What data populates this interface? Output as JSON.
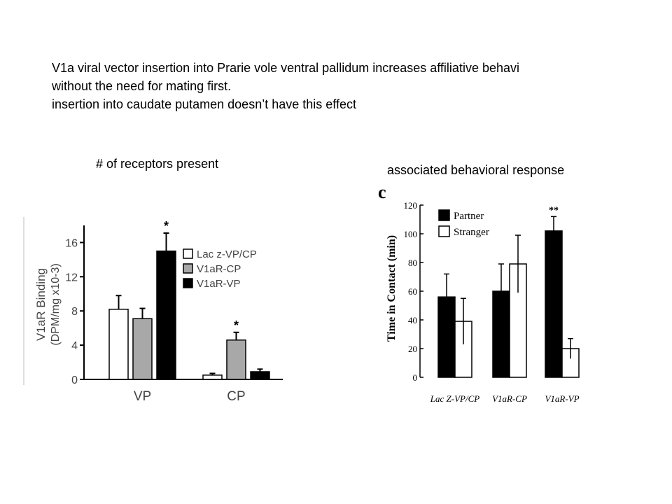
{
  "caption": {
    "line1": "V1a viral vector insertion into Prarie vole ventral pallidum increases affiliative behavi",
    "line2": "without the need for mating first.",
    "line3": "insertion into caudate putamen doesn’t have this effect"
  },
  "labels": {
    "left": "# of receptors present",
    "right": "associated behavioral response"
  },
  "chart_data": [
    {
      "type": "bar",
      "categories": [
        "VP",
        "CP"
      ],
      "ylabel_line1": "V1aR Binding",
      "ylabel_line2": "(DPM/mg x10-3)",
      "ylim": [
        0,
        18
      ],
      "yticks": [
        0,
        4,
        8,
        12,
        16
      ],
      "legend_position": "top-right",
      "series": [
        {
          "name": "Lac z-VP/CP",
          "fill": "#ffffff",
          "values": [
            8.2,
            0.5
          ],
          "errors": [
            1.6,
            0.2
          ],
          "sig": [
            "",
            ""
          ]
        },
        {
          "name": "V1aR-CP",
          "fill": "#a8a8a8",
          "values": [
            7.1,
            4.6
          ],
          "errors": [
            1.2,
            0.9
          ],
          "sig": [
            "",
            "*"
          ]
        },
        {
          "name": "V1aR-VP",
          "fill": "#000000",
          "values": [
            15.0,
            0.9
          ],
          "errors": [
            2.1,
            0.3
          ],
          "sig": [
            "*",
            ""
          ]
        }
      ]
    },
    {
      "type": "bar",
      "panel_letter": "c",
      "categories": [
        "Lac Z-VP/CP",
        "V1aR-CP",
        "V1aR-VP"
      ],
      "ylabel": "Time in Contact  (min)",
      "ylim": [
        0,
        120
      ],
      "yticks": [
        0,
        20,
        40,
        60,
        80,
        100,
        120
      ],
      "legend_position": "top-left",
      "series": [
        {
          "name": "Partner",
          "fill": "#000000",
          "values": [
            56,
            60,
            102
          ],
          "errors": [
            16,
            19,
            10
          ],
          "sig": [
            "",
            "",
            "**"
          ]
        },
        {
          "name": "Stranger",
          "fill": "#ffffff",
          "values": [
            39,
            79,
            20
          ],
          "errors": [
            16,
            20,
            7
          ],
          "sig": [
            "",
            "",
            ""
          ]
        }
      ]
    }
  ]
}
